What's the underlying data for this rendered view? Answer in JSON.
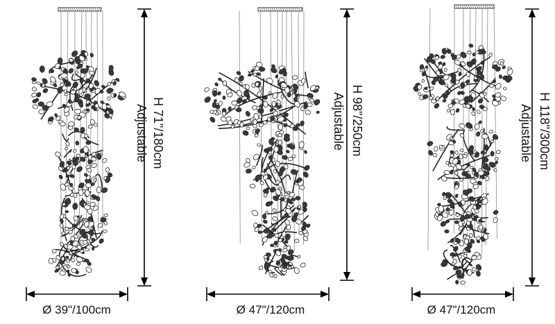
{
  "variants": [
    {
      "height_label": "H 71\"/180cm",
      "adjust_label": "Adjustable",
      "width_label": "Ø 39\"/100cm"
    },
    {
      "height_label": "H 98\"/250cm",
      "adjust_label": "Adjustable",
      "width_label": "Ø 47\"/120cm"
    },
    {
      "height_label": "H 118\"/300cm",
      "adjust_label": "Adjustable",
      "width_label": "Ø 47\"/120cm"
    }
  ]
}
